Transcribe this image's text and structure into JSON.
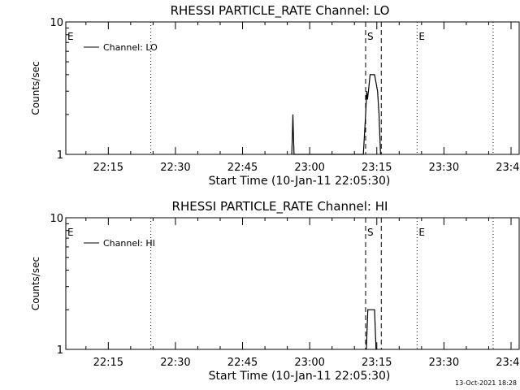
{
  "chart_data": [
    {
      "type": "line",
      "title": "RHESSI PARTICLE_RATE Channel: LO",
      "xlabel": "Start Time (10-Jan-11 22:05:30)",
      "ylabel": "Counts/sec",
      "yscale": "log",
      "ylim": [
        1,
        10
      ],
      "yticks": [
        "1",
        "10"
      ],
      "xlim": [
        "22:05:30",
        "23:47:00"
      ],
      "xticks": [
        "22:15",
        "22:30",
        "22:45",
        "23:00",
        "23:15",
        "23:30",
        "23:45"
      ],
      "legend": {
        "label": "Channel: LO",
        "placement": "top-left"
      },
      "grid": false,
      "markers": [
        {
          "time": "22:05:30",
          "label": "E",
          "style": "dotted"
        },
        {
          "time": "22:24:30",
          "label": "",
          "style": "dotted"
        },
        {
          "time": "23:12:30",
          "label": "S",
          "style": "dashed"
        },
        {
          "time": "23:16:00",
          "label": "",
          "style": "dashed"
        },
        {
          "time": "23:24:00",
          "label": "E",
          "style": "dotted"
        },
        {
          "time": "23:41:00",
          "label": "",
          "style": "dotted"
        }
      ],
      "series": [
        {
          "name": "Channel: LO",
          "points": [
            [
              "22:56:00",
              1
            ],
            [
              "22:56:10",
              1.5
            ],
            [
              "22:56:15",
              2
            ],
            [
              "22:56:20",
              1.5
            ],
            [
              "22:56:30",
              1
            ],
            [
              "23:12:00",
              1
            ],
            [
              "23:12:30",
              2
            ],
            [
              "23:12:45",
              3
            ],
            [
              "23:12:55",
              2.6
            ],
            [
              "23:13:10",
              3.1
            ],
            [
              "23:13:30",
              4
            ],
            [
              "23:14:30",
              4
            ],
            [
              "23:15:10",
              3
            ],
            [
              "23:15:30",
              2
            ],
            [
              "23:15:50",
              1
            ]
          ]
        }
      ],
      "footer": ""
    },
    {
      "type": "line",
      "title": "RHESSI PARTICLE_RATE Channel: HI",
      "xlabel": "Start Time (10-Jan-11 22:05:30)",
      "ylabel": "Counts/sec",
      "yscale": "log",
      "ylim": [
        1,
        10
      ],
      "yticks": [
        "1",
        "10"
      ],
      "xlim": [
        "22:05:30",
        "23:47:00"
      ],
      "xticks": [
        "22:15",
        "22:30",
        "22:45",
        "23:00",
        "23:15",
        "23:30",
        "23:45"
      ],
      "legend": {
        "label": "Channel: HI",
        "placement": "top-left"
      },
      "grid": false,
      "markers": [
        {
          "time": "22:05:30",
          "label": "E",
          "style": "dotted"
        },
        {
          "time": "22:24:30",
          "label": "",
          "style": "dotted"
        },
        {
          "time": "23:12:30",
          "label": "S",
          "style": "dashed"
        },
        {
          "time": "23:16:00",
          "label": "",
          "style": "dashed"
        },
        {
          "time": "23:24:00",
          "label": "E",
          "style": "dotted"
        },
        {
          "time": "23:41:00",
          "label": "",
          "style": "dotted"
        }
      ],
      "series": [
        {
          "name": "Channel: HI",
          "points": [
            [
              "23:12:40",
              1
            ],
            [
              "23:13:00",
              2
            ],
            [
              "23:14:30",
              2
            ],
            [
              "23:14:50",
              1
            ]
          ]
        }
      ],
      "footer": "13-Oct-2021 18:28"
    }
  ]
}
